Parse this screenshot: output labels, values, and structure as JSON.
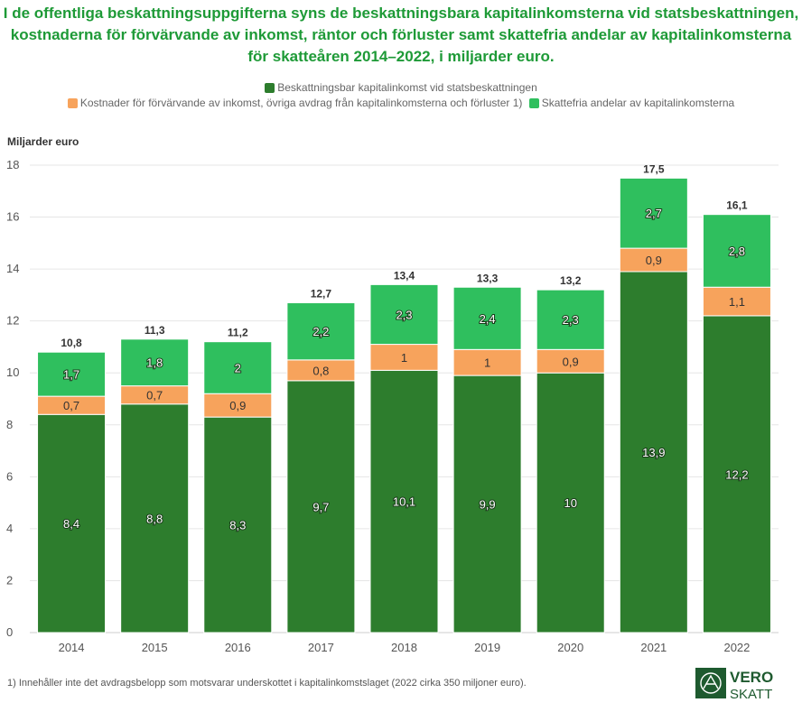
{
  "chart_data": {
    "type": "bar",
    "stacked": true,
    "title": "I de offentliga beskattningsuppgifterna syns de beskattningsbara kapitalinkomsterna vid statsbeskattningen, kostnaderna för förvärvande av inkomst, räntor och förluster samt skattefria andelar av kapitalinkomsterna för skatteåren 2014–2022, i miljarder euro.",
    "ylabel": "Miljarder euro",
    "ylim": [
      0,
      18
    ],
    "yticks": [
      "0",
      "2",
      "4",
      "6",
      "8",
      "10",
      "12",
      "14",
      "16",
      "18"
    ],
    "grid": true,
    "legend_position": "top",
    "categories": [
      "2014",
      "2015",
      "2016",
      "2017",
      "2018",
      "2019",
      "2020",
      "2021",
      "2022"
    ],
    "series": [
      {
        "name": "Beskattningsbar kapitalinkomst vid statsbeskattningen",
        "color": "#2d7d2d",
        "values": [
          8.4,
          8.8,
          8.3,
          9.7,
          10.1,
          9.9,
          10,
          13.9,
          12.2
        ],
        "labels": [
          "8,4",
          "8,8",
          "8,3",
          "9,7",
          "10,1",
          "9,9",
          "10",
          "13,9",
          "12,2"
        ]
      },
      {
        "name": "Kostnader för förvärvande av inkomst, övriga avdrag från kapitalinkomsterna och förluster 1)",
        "color": "#f7a35c",
        "values": [
          0.7,
          0.7,
          0.9,
          0.8,
          1,
          1,
          0.9,
          0.9,
          1.1
        ],
        "labels": [
          "0,7",
          "0,7",
          "0,9",
          "0,8",
          "1",
          "1",
          "0,9",
          "0,9",
          "1,1"
        ]
      },
      {
        "name": "Skattefria andelar av kapitalinkomsterna",
        "color": "#2fbf5e",
        "values": [
          1.7,
          1.8,
          2,
          2.2,
          2.3,
          2.4,
          2.3,
          2.7,
          2.8
        ],
        "labels": [
          "1,7",
          "1,8",
          "2",
          "2,2",
          "2,3",
          "2,4",
          "2,3",
          "2,7",
          "2,8"
        ]
      }
    ],
    "totals": [
      10.8,
      11.3,
      11.2,
      12.7,
      13.4,
      13.3,
      13.2,
      17.5,
      16.1
    ],
    "total_labels": [
      "10,8",
      "11,3",
      "11,2",
      "12,7",
      "13,4",
      "13,3",
      "13,2",
      "17,5",
      "16,1"
    ]
  },
  "footnote": "1) Innehåller inte det avdragsbelopp som motsvarar underskottet i kapitalinkomstslaget (2022 cirka 350 miljoner euro).",
  "logo": {
    "line1": "VERO",
    "line2": "SKATT",
    "color": "#1e5a2f"
  },
  "colors": {
    "title": "#1e9a37",
    "grid": "#e6e6e6"
  }
}
